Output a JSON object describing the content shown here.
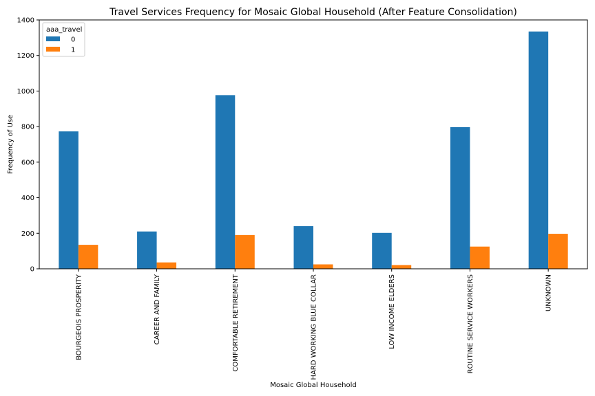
{
  "chart_data": {
    "type": "bar",
    "title": "Travel Services Frequency for Mosaic Global Household (After Feature Consolidation)",
    "xlabel": "Mosaic Global Household",
    "ylabel": "Frequency of Use",
    "ylim": [
      0,
      1400
    ],
    "yticks": [
      0,
      200,
      400,
      600,
      800,
      1000,
      1200,
      1400
    ],
    "grid": false,
    "legend": {
      "title": "aaa_travel",
      "placement": "top-left"
    },
    "categories": [
      "BOURGEOIS PROSPERITY",
      "CAREER AND FAMILY",
      "COMFORTABLE RETIREMENT",
      "HARD WORKING BLUE COLLAR",
      "LOW INCOME ELDERS",
      "ROUTINE SERVICE WORKERS",
      "UNKNOWN"
    ],
    "series": [
      {
        "name": "0",
        "color": "#1f77b4",
        "values": [
          773,
          210,
          977,
          240,
          202,
          797,
          1335
        ]
      },
      {
        "name": "1",
        "color": "#ff7f0e",
        "values": [
          135,
          36,
          190,
          25,
          21,
          125,
          197
        ]
      }
    ]
  }
}
